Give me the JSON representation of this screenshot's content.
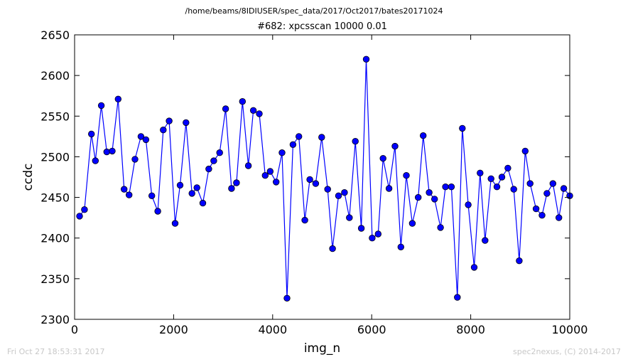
{
  "header": {
    "source_path": "/home/beams/8IDIUSER/spec_data/2017/Oct2017/bates20171024"
  },
  "footer": {
    "timestamp": "Fri Oct 27 18:53:31 2017",
    "credit": "spec2nexus, (C) 2014-2017"
  },
  "chart_data": {
    "type": "line",
    "title": "#682: xpcsscan 10000 0.01",
    "xlabel": "img_n",
    "ylabel": "ccdc",
    "xlim": [
      0,
      10000
    ],
    "ylim": [
      2300,
      2650
    ],
    "xticks": [
      0,
      2000,
      4000,
      6000,
      8000,
      10000
    ],
    "yticks": [
      2300,
      2350,
      2400,
      2450,
      2500,
      2550,
      2600,
      2650
    ],
    "grid": false,
    "legend": "none",
    "series_color": "#0000ff",
    "marker": "circle",
    "series": [
      {
        "x": [
          100,
          200,
          340,
          420,
          540,
          650,
          760,
          880,
          1000,
          1100,
          1220,
          1340,
          1440,
          1560,
          1680,
          1790,
          1910,
          2030,
          2130,
          2250,
          2370,
          2470,
          2590,
          2710,
          2810,
          2930,
          3050,
          3170,
          3270,
          3390,
          3510,
          3610,
          3730,
          3850,
          3950,
          4070,
          4190,
          4290,
          4410,
          4530,
          4650,
          4750,
          4870,
          4990,
          5110,
          5210,
          5330,
          5450,
          5550,
          5670,
          5790,
          5890,
          6010,
          6130,
          6230,
          6350,
          6470,
          6590,
          6700,
          6820,
          6940,
          7040,
          7160,
          7270,
          7390,
          7490,
          7610,
          7730,
          7830,
          7950,
          8070,
          8190,
          8290,
          8410,
          8530,
          8630,
          8750,
          8870,
          8980,
          9100,
          9200,
          9320,
          9440,
          9540,
          9660,
          9780,
          9880,
          10000
        ],
        "y": [
          2427,
          2435,
          2528,
          2495,
          2563,
          2506,
          2507,
          2571,
          2460,
          2453,
          2497,
          2525,
          2521,
          2452,
          2433,
          2533,
          2544,
          2418,
          2465,
          2542,
          2455,
          2462,
          2443,
          2485,
          2495,
          2505,
          2559,
          2461,
          2468,
          2568,
          2489,
          2557,
          2553,
          2477,
          2482,
          2469,
          2505,
          2326,
          2515,
          2525,
          2422,
          2472,
          2467,
          2524,
          2460,
          2387,
          2452,
          2456,
          2425,
          2519,
          2412,
          2620,
          2400,
          2405,
          2498,
          2461,
          2513,
          2389,
          2477,
          2418,
          2450,
          2526,
          2456,
          2448,
          2413,
          2463,
          2463,
          2327,
          2535,
          2441,
          2364,
          2480,
          2397,
          2473,
          2463,
          2475,
          2486,
          2460,
          2372,
          2507,
          2467,
          2436,
          2428,
          2455,
          2467,
          2425,
          2461,
          2452
        ]
      }
    ]
  }
}
